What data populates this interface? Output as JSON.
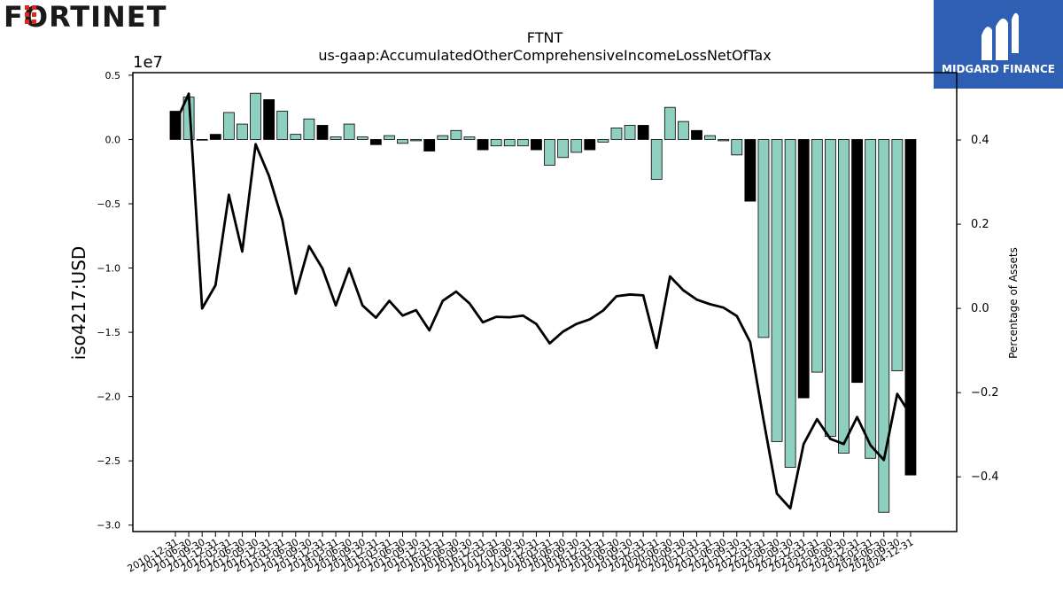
{
  "logos": {
    "left_brand": "FORTINET",
    "right_brand": "MIDGARD FINANCE"
  },
  "chart_data": {
    "type": "bar",
    "title": "FTNT",
    "subtitle": "us-gaap:AccumulatedOtherComprehensiveIncomeLossNetOfTax",
    "ylabel": "iso4217:USD",
    "y2label": "Percentage of Assets",
    "y_offset_text": "1e7",
    "ylim": [
      -30500000,
      5200000
    ],
    "y2lim": [
      -0.53,
      0.56
    ],
    "yticks": [
      0.5,
      0.0,
      -0.5,
      -1.0,
      -1.5,
      -2.0,
      -2.5,
      -3.0
    ],
    "y2ticks": [
      0.4,
      0.2,
      0.0,
      -0.2,
      -0.4
    ],
    "colors": {
      "bar_default": "#8ecfc0",
      "bar_highlight": "#000000",
      "line": "#000000"
    },
    "categories": [
      "2010-12-31",
      "2011-06-30",
      "2011-09-30",
      "2011-12-31",
      "2012-03-31",
      "2012-06-30",
      "2012-09-30",
      "2012-12-31",
      "2013-03-31",
      "2013-06-30",
      "2013-09-30",
      "2013-12-31",
      "2014-03-31",
      "2014-06-30",
      "2014-09-30",
      "2014-12-31",
      "2015-03-31",
      "2015-06-30",
      "2015-09-30",
      "2015-12-31",
      "2016-03-31",
      "2016-06-30",
      "2016-09-30",
      "2016-12-31",
      "2017-03-31",
      "2017-06-30",
      "2017-09-30",
      "2017-12-31",
      "2018-03-31",
      "2018-06-30",
      "2018-09-30",
      "2018-12-31",
      "2019-03-31",
      "2019-06-30",
      "2019-09-30",
      "2019-12-31",
      "2020-03-31",
      "2020-06-30",
      "2020-09-30",
      "2020-12-31",
      "2021-03-31",
      "2021-06-30",
      "2021-09-30",
      "2021-12-31",
      "2022-03-31",
      "2022-06-30",
      "2022-09-30",
      "2022-12-31",
      "2023-03-31",
      "2023-06-30",
      "2023-09-30",
      "2023-12-31",
      "2024-03-31",
      "2024-06-30",
      "2024-09-30",
      "2024-12-31"
    ],
    "series": [
      {
        "values": [
          2200000,
          3300000,
          0,
          400000,
          2100000,
          1200000,
          3600000,
          3100000,
          2200000,
          400000,
          1600000,
          1100000,
          200000,
          1200000,
          200000,
          -400000,
          300000,
          -300000,
          -100000,
          -900000,
          300000,
          700000,
          200000,
          -800000,
          -500000,
          -500000,
          -500000,
          -800000,
          -2000000,
          -1400000,
          -1000000,
          -800000,
          -200000,
          900000,
          1100000,
          1100000,
          -3100000,
          2500000,
          1400000,
          700000,
          300000,
          -100000,
          -1200000,
          -4800000,
          -15400000,
          -23500000,
          -25500000,
          -20100000,
          -18100000,
          -23100000,
          -24400000,
          -18900000,
          -24800000,
          -29000000,
          -18000000,
          -26100000
        ],
        "highlight": [
          true,
          false,
          false,
          true,
          false,
          false,
          false,
          true,
          false,
          false,
          false,
          true,
          false,
          false,
          false,
          true,
          false,
          false,
          false,
          true,
          false,
          false,
          false,
          true,
          false,
          false,
          false,
          true,
          false,
          false,
          false,
          true,
          false,
          false,
          false,
          true,
          false,
          false,
          false,
          true,
          false,
          false,
          false,
          true,
          false,
          false,
          false,
          true,
          false,
          false,
          false,
          true,
          false,
          false,
          false,
          true
        ]
      },
      {
        "name": "Percentage of Assets",
        "type": "line",
        "axis": "right",
        "values": [
          0.44,
          0.51,
          0.0,
          0.055,
          0.27,
          0.135,
          0.39,
          0.315,
          0.21,
          0.035,
          0.148,
          0.095,
          0.007,
          0.095,
          0.007,
          -0.022,
          0.018,
          -0.017,
          -0.004,
          -0.052,
          0.018,
          0.04,
          0.012,
          -0.033,
          -0.02,
          -0.021,
          -0.017,
          -0.037,
          -0.083,
          -0.055,
          -0.037,
          -0.026,
          -0.005,
          0.029,
          0.033,
          0.031,
          -0.094,
          0.076,
          0.043,
          0.021,
          0.01,
          0.002,
          -0.018,
          -0.08,
          -0.265,
          -0.44,
          -0.475,
          -0.322,
          -0.263,
          -0.31,
          -0.322,
          -0.258,
          -0.325,
          -0.36,
          -0.203,
          -0.253
        ]
      }
    ]
  }
}
